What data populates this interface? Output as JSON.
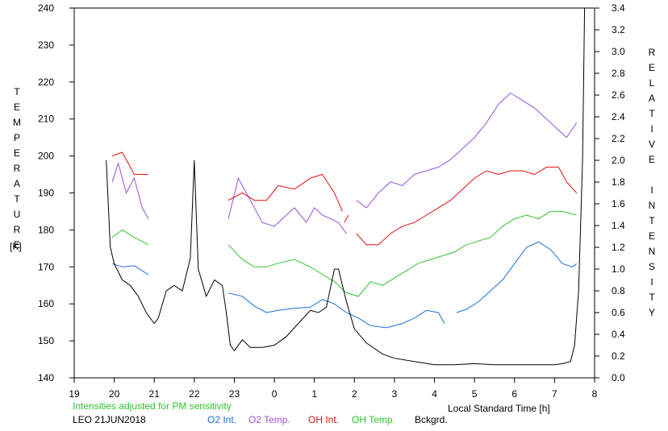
{
  "chart_data": {
    "type": "line",
    "xlabel": "Local Standard Time [h]",
    "ylabel_left": "TEMPERATURE",
    "ylabel_left_unit": "[K]",
    "ylabel_right": "RELATIVE INTENSITY",
    "x_ticks": [
      "19",
      "20",
      "21",
      "22",
      "23",
      "0",
      "1",
      "2",
      "3",
      "4",
      "5",
      "6",
      "7",
      "8"
    ],
    "x_tick_values": [
      19,
      20,
      21,
      22,
      23,
      24,
      25,
      26,
      27,
      28,
      29,
      30,
      31,
      32
    ],
    "xlim": [
      19,
      32
    ],
    "ylim_left": [
      140,
      240
    ],
    "y_ticks_left": [
      140,
      150,
      160,
      170,
      180,
      190,
      200,
      210,
      220,
      230,
      240
    ],
    "ylim_right": [
      0.0,
      3.4
    ],
    "y_ticks_right": [
      "0.0",
      "0.2",
      "0.4",
      "0.6",
      "0.8",
      "1.0",
      "1.2",
      "1.4",
      "1.6",
      "1.8",
      "2.0",
      "2.2",
      "2.4",
      "2.6",
      "2.8",
      "3.0",
      "3.2",
      "3.4"
    ],
    "note": "Intensities adjusted for PM sensitivity",
    "station_date": "LEO 21JUN2018",
    "series": [
      {
        "name": "O2 Int.",
        "color": "#1a6fd8",
        "axis": "right",
        "segments": [
          [
            [
              19.95,
              1.05
            ],
            [
              20.2,
              1.02
            ],
            [
              20.5,
              1.03
            ],
            [
              20.85,
              0.95
            ]
          ],
          [
            [
              22.85,
              0.78
            ],
            [
              23.2,
              0.75
            ],
            [
              23.5,
              0.66
            ],
            [
              23.8,
              0.6
            ],
            [
              24.1,
              0.62
            ],
            [
              24.5,
              0.64
            ],
            [
              24.9,
              0.65
            ],
            [
              25.2,
              0.72
            ],
            [
              25.5,
              0.68
            ],
            [
              25.8,
              0.6
            ],
            [
              26.1,
              0.55
            ],
            [
              26.4,
              0.48
            ],
            [
              26.8,
              0.46
            ],
            [
              27.2,
              0.5
            ],
            [
              27.5,
              0.55
            ],
            [
              27.8,
              0.62
            ],
            [
              28.1,
              0.6
            ],
            [
              28.25,
              0.5
            ]
          ],
          [
            [
              28.55,
              0.6
            ],
            [
              28.8,
              0.63
            ],
            [
              29.1,
              0.7
            ],
            [
              29.4,
              0.8
            ],
            [
              29.7,
              0.9
            ],
            [
              30.0,
              1.05
            ],
            [
              30.3,
              1.2
            ],
            [
              30.6,
              1.25
            ],
            [
              30.9,
              1.18
            ],
            [
              31.2,
              1.05
            ],
            [
              31.45,
              1.02
            ],
            [
              31.55,
              1.05
            ]
          ]
        ]
      },
      {
        "name": "O2 Temp.",
        "color": "#9b4fd8",
        "axis": "left",
        "segments": [
          [
            [
              19.95,
              193
            ],
            [
              20.1,
              198
            ],
            [
              20.3,
              190
            ],
            [
              20.5,
              194
            ],
            [
              20.7,
              186
            ],
            [
              20.85,
              183
            ]
          ],
          [
            [
              22.85,
              183
            ],
            [
              23.1,
              194
            ],
            [
              23.4,
              188
            ],
            [
              23.7,
              182
            ],
            [
              24.0,
              181
            ],
            [
              24.3,
              184
            ],
            [
              24.5,
              186
            ],
            [
              24.8,
              182
            ],
            [
              25.0,
              186
            ],
            [
              25.2,
              184
            ],
            [
              25.4,
              183
            ],
            [
              25.6,
              182
            ],
            [
              25.8,
              179
            ]
          ],
          [
            [
              26.05,
              188
            ],
            [
              26.3,
              186
            ],
            [
              26.6,
              190
            ],
            [
              26.9,
              193
            ],
            [
              27.2,
              192
            ],
            [
              27.5,
              195
            ],
            [
              27.8,
              196
            ],
            [
              28.1,
              197
            ],
            [
              28.4,
              199
            ],
            [
              28.7,
              202
            ],
            [
              29.0,
              205
            ],
            [
              29.3,
              209
            ],
            [
              29.6,
              214
            ],
            [
              29.9,
              217
            ],
            [
              30.2,
              215
            ],
            [
              30.5,
              213
            ],
            [
              30.8,
              210
            ],
            [
              31.1,
              207
            ],
            [
              31.3,
              205
            ],
            [
              31.55,
              209
            ]
          ]
        ]
      },
      {
        "name": "OH Int.",
        "color": "#e01010",
        "axis": "left",
        "segments": [
          [
            [
              19.95,
              200
            ],
            [
              20.2,
              201
            ],
            [
              20.5,
              195
            ],
            [
              20.85,
              195
            ]
          ],
          [
            [
              22.85,
              188
            ],
            [
              23.2,
              190
            ],
            [
              23.5,
              188
            ],
            [
              23.8,
              188
            ],
            [
              24.1,
              192
            ],
            [
              24.5,
              191
            ],
            [
              24.9,
              194
            ],
            [
              25.2,
              195
            ],
            [
              25.5,
              190
            ],
            [
              25.7,
              185
            ]
          ],
          [
            [
              25.75,
              182
            ],
            [
              25.85,
              184
            ]
          ],
          [
            [
              26.05,
              179
            ],
            [
              26.3,
              176
            ],
            [
              26.6,
              176
            ],
            [
              26.9,
              179
            ],
            [
              27.2,
              181
            ],
            [
              27.5,
              182
            ],
            [
              27.8,
              184
            ],
            [
              28.1,
              186
            ],
            [
              28.4,
              188
            ],
            [
              28.7,
              191
            ],
            [
              29.0,
              194
            ],
            [
              29.3,
              196
            ],
            [
              29.6,
              195
            ],
            [
              29.9,
              196
            ],
            [
              30.2,
              196
            ],
            [
              30.5,
              195
            ],
            [
              30.8,
              197
            ],
            [
              31.1,
              197
            ],
            [
              31.3,
              193
            ],
            [
              31.55,
              190
            ]
          ]
        ]
      },
      {
        "name": "OH Temp.",
        "color": "#2fc42f",
        "axis": "left",
        "segments": [
          [
            [
              19.95,
              178
            ],
            [
              20.2,
              180
            ],
            [
              20.5,
              178
            ],
            [
              20.85,
              176
            ]
          ],
          [
            [
              22.85,
              176
            ],
            [
              23.2,
              172
            ],
            [
              23.5,
              170
            ],
            [
              23.8,
              170
            ],
            [
              24.1,
              171
            ],
            [
              24.5,
              172
            ],
            [
              24.9,
              170
            ],
            [
              25.2,
              168
            ],
            [
              25.5,
              166
            ],
            [
              25.8,
              163
            ],
            [
              26.1,
              162
            ],
            [
              26.4,
              166
            ],
            [
              26.7,
              165
            ],
            [
              27.0,
              167
            ],
            [
              27.3,
              169
            ],
            [
              27.6,
              171
            ],
            [
              27.9,
              172
            ],
            [
              28.2,
              173
            ],
            [
              28.5,
              174
            ],
            [
              28.8,
              176
            ],
            [
              29.1,
              177
            ],
            [
              29.4,
              178
            ],
            [
              29.7,
              181
            ],
            [
              30.0,
              183
            ],
            [
              30.3,
              184
            ],
            [
              30.6,
              183
            ],
            [
              30.9,
              185
            ],
            [
              31.2,
              185
            ],
            [
              31.55,
              184
            ]
          ]
        ]
      },
      {
        "name": "Bckgrd.",
        "color": "#000000",
        "axis": "right",
        "segments": [
          [
            [
              19.8,
              2.0
            ],
            [
              19.9,
              1.2
            ],
            [
              20.0,
              1.05
            ],
            [
              20.2,
              0.9
            ],
            [
              20.4,
              0.85
            ],
            [
              20.6,
              0.75
            ],
            [
              20.8,
              0.6
            ],
            [
              21.0,
              0.5
            ],
            [
              21.1,
              0.55
            ],
            [
              21.3,
              0.8
            ],
            [
              21.5,
              0.85
            ],
            [
              21.7,
              0.8
            ],
            [
              21.9,
              1.1
            ],
            [
              22.0,
              2.0
            ],
            [
              22.1,
              1.0
            ],
            [
              22.3,
              0.75
            ],
            [
              22.5,
              0.9
            ],
            [
              22.7,
              0.85
            ],
            [
              22.8,
              0.6
            ],
            [
              22.9,
              0.3
            ],
            [
              23.0,
              0.25
            ],
            [
              23.2,
              0.35
            ],
            [
              23.4,
              0.28
            ],
            [
              23.7,
              0.28
            ],
            [
              24.0,
              0.3
            ],
            [
              24.3,
              0.38
            ],
            [
              24.6,
              0.5
            ],
            [
              24.9,
              0.62
            ],
            [
              25.1,
              0.6
            ],
            [
              25.3,
              0.65
            ],
            [
              25.5,
              1.0
            ],
            [
              25.6,
              1.0
            ],
            [
              25.8,
              0.7
            ],
            [
              26.0,
              0.45
            ],
            [
              26.3,
              0.32
            ],
            [
              26.7,
              0.22
            ],
            [
              27.0,
              0.18
            ],
            [
              27.5,
              0.15
            ],
            [
              28.0,
              0.12
            ],
            [
              28.5,
              0.12
            ],
            [
              29.0,
              0.13
            ],
            [
              29.5,
              0.12
            ],
            [
              30.0,
              0.12
            ],
            [
              30.5,
              0.12
            ],
            [
              31.0,
              0.12
            ],
            [
              31.2,
              0.13
            ],
            [
              31.4,
              0.15
            ],
            [
              31.5,
              0.3
            ],
            [
              31.6,
              0.8
            ],
            [
              31.7,
              2.0
            ],
            [
              31.75,
              3.4
            ]
          ]
        ]
      }
    ]
  }
}
